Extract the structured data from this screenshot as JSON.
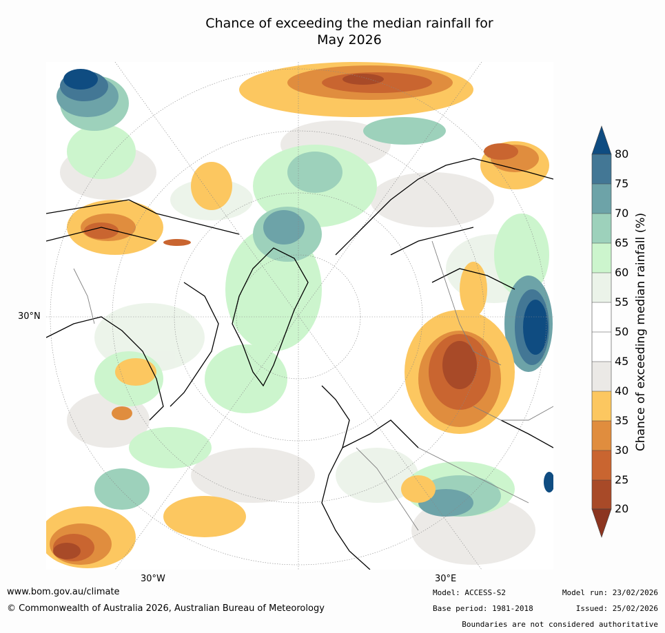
{
  "title_line1": "Chance of exceeding the median rainfall for",
  "title_line2": "May 2026",
  "axis": {
    "lat_label": "30°N",
    "lon_left": "30°W",
    "lon_right": "30°E"
  },
  "colorbar": {
    "title": "Chance of exceeding median rainfall (%)",
    "ticks": [
      "80",
      "75",
      "70",
      "65",
      "60",
      "55",
      "50",
      "45",
      "40",
      "35",
      "30",
      "25",
      "20"
    ],
    "colors": {
      "c80p": "#0f4c81",
      "c75": "#437795",
      "c70": "#6da3a8",
      "c65": "#9dd1bb",
      "c60": "#ccf5cd",
      "c55": "#ebf3e9",
      "c50": "#ffffff",
      "c45": "#ffffff",
      "c40": "#ebe9e6",
      "c35": "#fcc760",
      "c30": "#e08d3e",
      "c25": "#c96530",
      "c20": "#a84a28",
      "c20m": "#8c3520"
    }
  },
  "footer": {
    "url": "www.bom.gov.au/climate",
    "copyright": "© Commonwealth of Australia 2026, Australian Bureau of Meteorology",
    "model": "Model: ACCESS-S2",
    "base_period": "Base period: 1981-2018",
    "model_run": "Model run: 23/02/2026",
    "issued": "Issued: 25/02/2026",
    "disclaimer": "Boundaries are not considered authoritative"
  }
}
